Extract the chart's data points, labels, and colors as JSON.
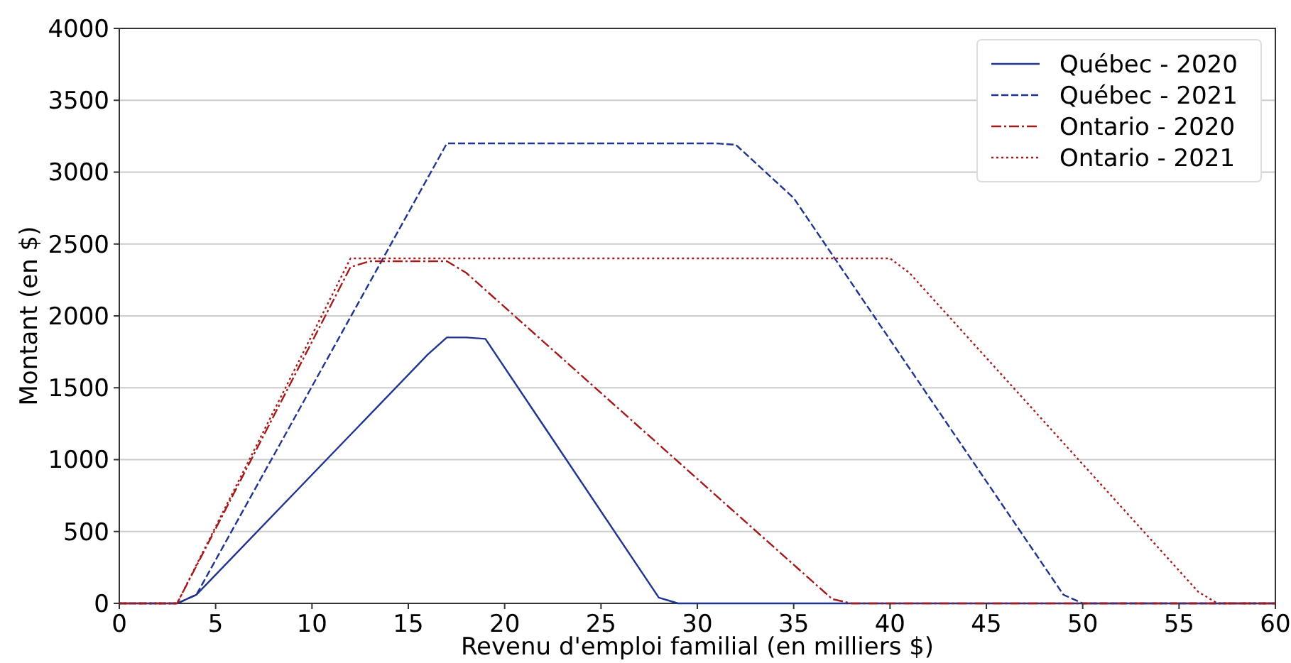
{
  "chart_data": {
    "type": "line",
    "xlabel": "Revenu d'emploi familial (en milliers $)",
    "ylabel": "Montant (en $)",
    "xlim": [
      0,
      60
    ],
    "ylim": [
      0,
      4000
    ],
    "xticks": [
      0,
      5,
      10,
      15,
      20,
      25,
      30,
      35,
      40,
      45,
      50,
      55,
      60
    ],
    "yticks": [
      0,
      500,
      1000,
      1500,
      2000,
      2500,
      3000,
      3500,
      4000
    ],
    "grid": "y",
    "legend": "top right",
    "series": [
      {
        "name": "Québec - 2020",
        "color": "#1f3391",
        "line_style": "solid",
        "x": [
          0,
          3,
          4,
          16,
          17,
          18,
          19,
          28,
          29,
          60
        ],
        "values": [
          0,
          0,
          60,
          1730,
          1850,
          1850,
          1840,
          40,
          0,
          0
        ]
      },
      {
        "name": "Québec - 2021",
        "color": "#1f3391",
        "line_style": "dashed",
        "x": [
          0,
          3,
          4,
          17,
          31,
          32,
          35,
          49,
          50,
          60
        ],
        "values": [
          0,
          0,
          60,
          3200,
          3200,
          3190,
          2820,
          60,
          0,
          0
        ]
      },
      {
        "name": "Ontario - 2020",
        "color": "#a31a1a",
        "line_style": "dashdot",
        "x": [
          0,
          3,
          12,
          13,
          17,
          18,
          37,
          38,
          60
        ],
        "values": [
          0,
          0,
          2340,
          2380,
          2380,
          2300,
          30,
          0,
          0
        ]
      },
      {
        "name": "Ontario - 2021",
        "color": "#a31a1a",
        "line_style": "dotted",
        "x": [
          0,
          3,
          12,
          40,
          41,
          56,
          57,
          60
        ],
        "values": [
          0,
          0,
          2400,
          2400,
          2300,
          80,
          0,
          0
        ]
      }
    ]
  }
}
